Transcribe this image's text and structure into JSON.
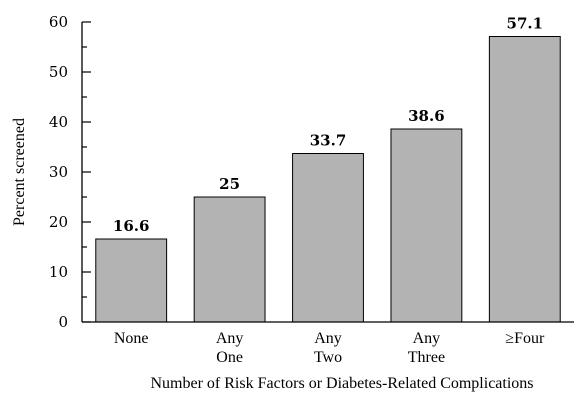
{
  "chart_data": {
    "type": "bar",
    "categories": [
      [
        "None"
      ],
      [
        "Any",
        "One"
      ],
      [
        "Any",
        "Two"
      ],
      [
        "Any",
        "Three"
      ],
      [
        "≥Four"
      ]
    ],
    "values": [
      16.6,
      25,
      33.7,
      38.6,
      57.1
    ],
    "value_labels": [
      "16.6",
      "25",
      "33.7",
      "38.6",
      "57.1"
    ],
    "title": "",
    "xlabel": "Number of Risk Factors or Diabetes-Related Complications",
    "ylabel": "Percent screened",
    "ylim": [
      0,
      60
    ],
    "yticks": [
      "0",
      "10",
      "20",
      "30",
      "40",
      "50",
      "60"
    ],
    "grid": false,
    "bar_color": "#b3b3b3"
  }
}
